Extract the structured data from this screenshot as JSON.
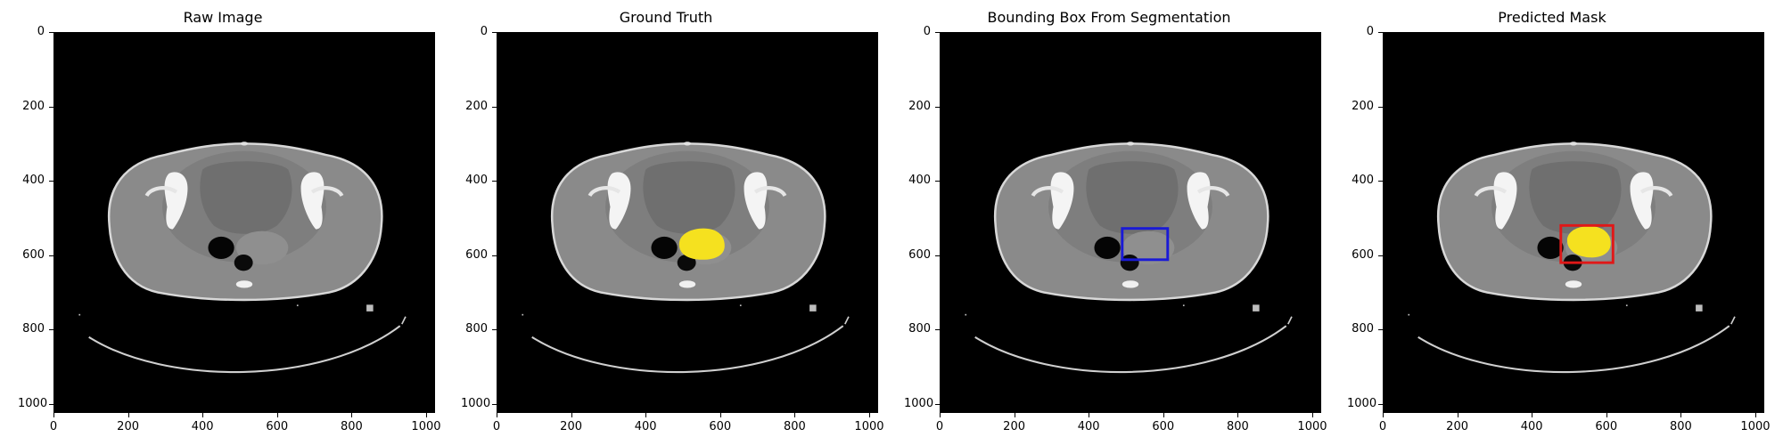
{
  "panels": [
    {
      "title": "Raw Image",
      "overlay": "none"
    },
    {
      "title": "Ground Truth",
      "overlay": "mask"
    },
    {
      "title": "Bounding Box From Segmentation",
      "overlay": "bbox"
    },
    {
      "title": "Predicted Mask",
      "overlay": "mask_bbox"
    }
  ],
  "axis": {
    "yticks": [
      "0",
      "200",
      "400",
      "600",
      "800",
      "1000"
    ],
    "xticks": [
      "0",
      "200",
      "400",
      "600",
      "800",
      "1000"
    ]
  },
  "colors": {
    "mask": "#f5e11f",
    "bbox_segmentation": "#1a1ad6",
    "bbox_prediction": "#e01818",
    "background": "#000000"
  }
}
